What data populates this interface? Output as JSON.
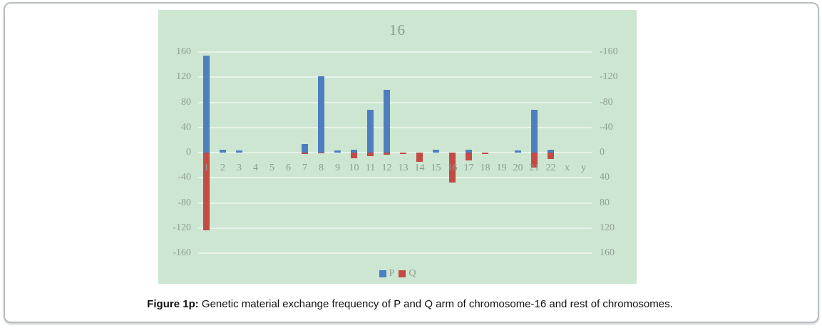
{
  "figure": {
    "caption_label": "Figure 1p:",
    "caption_text": " Genetic material exchange frequency of P and Q arm of chromosome-16 and rest of chromosomes."
  },
  "chart_data": {
    "type": "bar",
    "title": "16",
    "categories": [
      "1",
      "2",
      "3",
      "4",
      "5",
      "6",
      "7",
      "8",
      "9",
      "10",
      "11",
      "12",
      "13",
      "14",
      "15",
      "16",
      "17",
      "18",
      "19",
      "20",
      "21",
      "22",
      "x",
      "y"
    ],
    "series": [
      {
        "name": "P",
        "color": "#4d7ebf",
        "values": [
          154,
          5,
          3,
          0,
          0,
          0,
          14,
          121,
          3,
          5,
          68,
          100,
          0,
          0,
          4,
          0,
          5,
          0,
          0,
          3,
          68,
          4,
          0,
          0
        ]
      },
      {
        "name": "Q",
        "color": "#c44b45",
        "values": [
          -124,
          0,
          0,
          0,
          0,
          0,
          -2,
          -1,
          0,
          -9,
          -6,
          -3,
          -2,
          -15,
          0,
          -48,
          -12,
          -2,
          0,
          0,
          -24,
          -10,
          0,
          0
        ]
      }
    ],
    "left_axis_ticks": [
      "160",
      "120",
      "80",
      "40",
      "0",
      "-40",
      "-80",
      "-120",
      "-160"
    ],
    "right_axis_ticks": [
      "-160",
      "-120",
      "-80",
      "-40",
      "0",
      "40",
      "80",
      "120",
      "160"
    ],
    "ylim": [
      -160,
      160
    ],
    "grid": true,
    "legend_position": "bottom",
    "xlabel": "",
    "ylabel": "",
    "panel_background": "#cde6d1",
    "gridline_color": "#e7f3e9",
    "axis_text_color": "#8f9e94"
  }
}
